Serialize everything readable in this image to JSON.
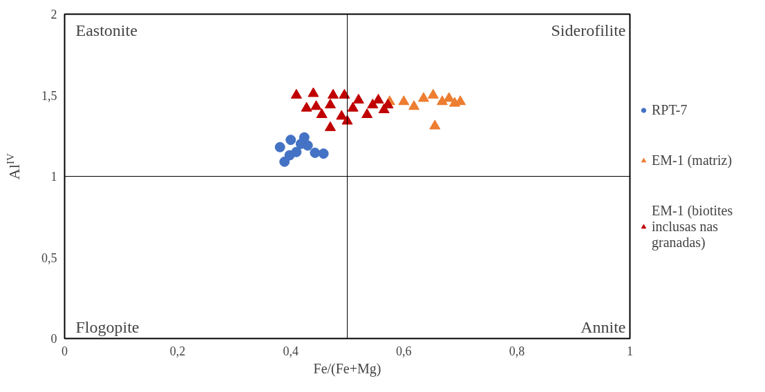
{
  "chart_data": {
    "type": "scatter",
    "xlabel": "Fe/(Fe+Mg)",
    "ylabel": "Al$^{IV}$",
    "xlim": [
      0,
      1
    ],
    "ylim": [
      0,
      2
    ],
    "xticks": [
      0,
      {
        "value": 0.2,
        "label": "0,2"
      },
      {
        "value": 0.4,
        "label": "0,4"
      },
      {
        "value": 0.6,
        "label": "0,6"
      },
      {
        "value": 0.8,
        "label": "0,8"
      },
      1
    ],
    "yticks": [
      0,
      {
        "value": 0.5,
        "label": "0,5"
      },
      1,
      {
        "value": 1.5,
        "label": "1,5"
      },
      2
    ],
    "grid": false,
    "legend": "right",
    "ref_lines": [
      {
        "axis": "x",
        "value": 0.5,
        "label": null,
        "color": "#000000"
      },
      {
        "axis": "y",
        "value": 1,
        "label": null,
        "color": "#000000"
      }
    ],
    "annotations": [
      "Eastonite",
      "Siderofilite",
      "Flogopite",
      "Annite"
    ],
    "series": [
      {
        "name": "RPT-7",
        "color": "#4472c4",
        "marker": "circle",
        "x": [
          0.381,
          0.389,
          0.4,
          0.424,
          0.443,
          0.458,
          0.41,
          0.43,
          0.398,
          0.418
        ],
        "values": [
          1.18,
          1.09,
          1.225,
          1.24,
          1.145,
          1.14,
          1.15,
          1.19,
          1.13,
          1.2
        ]
      },
      {
        "name": "EM-1 (matriz)",
        "color": "#ed7d31",
        "marker": "triangle",
        "x": [
          0.575,
          0.6,
          0.618,
          0.635,
          0.652,
          0.655,
          0.668,
          0.68,
          0.69,
          0.7
        ],
        "values": [
          1.46,
          1.46,
          1.43,
          1.48,
          1.5,
          1.31,
          1.46,
          1.48,
          1.45,
          1.46
        ]
      },
      {
        "name": "EM-1 (biotites inclusas nas granadas)",
        "color": "#c00000",
        "marker": "triangle",
        "x": [
          0.41,
          0.428,
          0.44,
          0.455,
          0.47,
          0.475,
          0.49,
          0.495,
          0.5,
          0.51,
          0.52,
          0.535,
          0.555,
          0.565,
          0.572,
          0.47,
          0.445,
          0.545
        ],
        "values": [
          1.5,
          1.42,
          1.51,
          1.38,
          1.44,
          1.5,
          1.37,
          1.5,
          1.34,
          1.42,
          1.47,
          1.38,
          1.47,
          1.41,
          1.44,
          1.3,
          1.43,
          1.44
        ]
      }
    ]
  }
}
